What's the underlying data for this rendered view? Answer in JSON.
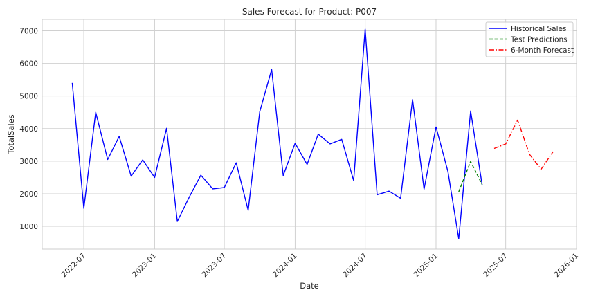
{
  "chart_data": {
    "type": "line",
    "title": "Sales Forecast for Product: P007",
    "xlabel": "Date",
    "ylabel": "TotalSales",
    "xlim": [
      "2022-03-15",
      "2026-01-01"
    ],
    "ylim": [
      300,
      7350
    ],
    "yticks": [
      1000,
      2000,
      3000,
      4000,
      5000,
      6000,
      7000
    ],
    "xticks": [
      "2022-07",
      "2023-01",
      "2023-07",
      "2024-01",
      "2024-07",
      "2025-01",
      "2025-07",
      "2026-01"
    ],
    "grid": true,
    "legend_position": "top-right",
    "series": [
      {
        "name": "Historical Sales",
        "color": "#0000ff",
        "style": "solid",
        "points": [
          [
            "2022-06-01",
            5400
          ],
          [
            "2022-07-01",
            1550
          ],
          [
            "2022-08-01",
            4500
          ],
          [
            "2022-09-01",
            3050
          ],
          [
            "2022-10-01",
            3760
          ],
          [
            "2022-11-01",
            2540
          ],
          [
            "2022-12-01",
            3040
          ],
          [
            "2023-01-01",
            2500
          ],
          [
            "2023-02-01",
            4010
          ],
          [
            "2023-03-01",
            1150
          ],
          [
            "2023-04-01",
            1900
          ],
          [
            "2023-05-01",
            2570
          ],
          [
            "2023-06-01",
            2150
          ],
          [
            "2023-07-01",
            2190
          ],
          [
            "2023-08-01",
            2950
          ],
          [
            "2023-09-01",
            1490
          ],
          [
            "2023-10-01",
            4520
          ],
          [
            "2023-11-01",
            5810
          ],
          [
            "2023-12-01",
            2560
          ],
          [
            "2024-01-01",
            3550
          ],
          [
            "2024-02-01",
            2900
          ],
          [
            "2024-03-01",
            3830
          ],
          [
            "2024-04-01",
            3530
          ],
          [
            "2024-05-01",
            3670
          ],
          [
            "2024-06-01",
            2400
          ],
          [
            "2024-07-01",
            7050
          ],
          [
            "2024-08-01",
            1970
          ],
          [
            "2024-09-01",
            2080
          ],
          [
            "2024-10-01",
            1860
          ],
          [
            "2024-11-01",
            4890
          ],
          [
            "2024-12-01",
            2140
          ],
          [
            "2025-01-01",
            4050
          ],
          [
            "2025-02-01",
            2680
          ],
          [
            "2025-03-01",
            620
          ],
          [
            "2025-04-01",
            4540
          ],
          [
            "2025-05-01",
            2260
          ]
        ]
      },
      {
        "name": "Test Predictions",
        "color": "#008000",
        "style": "dashed",
        "points": [
          [
            "2025-03-01",
            2060
          ],
          [
            "2025-04-01",
            2990
          ],
          [
            "2025-05-01",
            2280
          ]
        ]
      },
      {
        "name": "6-Month Forecast",
        "color": "#ff0000",
        "style": "dashdot",
        "points": [
          [
            "2025-06-01",
            3390
          ],
          [
            "2025-07-01",
            3530
          ],
          [
            "2025-08-01",
            4260
          ],
          [
            "2025-09-01",
            3210
          ],
          [
            "2025-10-01",
            2750
          ],
          [
            "2025-11-01",
            3290
          ]
        ]
      }
    ]
  }
}
